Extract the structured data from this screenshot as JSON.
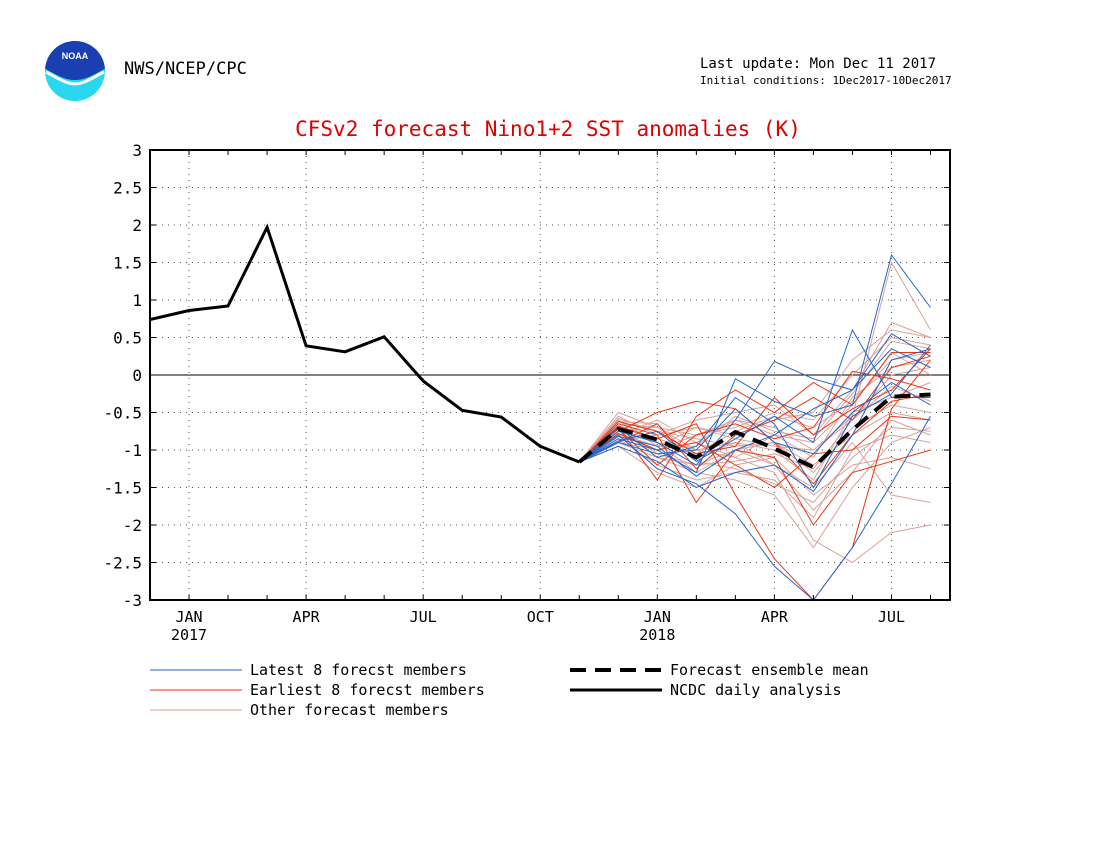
{
  "header": {
    "logo_text": "NOAA",
    "agency": "NWS/NCEP/CPC",
    "last_update": "Last update: Mon Dec 11 2017",
    "initial_conditions": "Initial conditions: 1Dec2017-10Dec2017"
  },
  "colors": {
    "title": "#dd0000",
    "latest": "#2266cc",
    "earliest": "#ee3311",
    "other": "#d9a29a",
    "logo_top": "#1a3fb0",
    "logo_bottom": "#29d8f0"
  },
  "chart_data": {
    "type": "line",
    "title": "CFSv2 forecast Nino1+2 SST anomalies (K)",
    "ylim": [
      -3,
      3
    ],
    "yticks": [
      3,
      2.5,
      2,
      1.5,
      1,
      0.5,
      0,
      -0.5,
      -1,
      -1.5,
      -2,
      -2.5,
      -3
    ],
    "ytick_labels": [
      "3",
      "2.5",
      "2",
      "1.5",
      "1",
      "0.5",
      "0",
      "-0.5",
      "-1",
      "-1.5",
      "-2",
      "-2.5",
      "-3"
    ],
    "x_months": [
      "2016-12",
      "2017-01",
      "2017-02",
      "2017-03",
      "2017-04",
      "2017-05",
      "2017-06",
      "2017-07",
      "2017-08",
      "2017-09",
      "2017-10",
      "2017-11",
      "2017-12",
      "2018-01",
      "2018-02",
      "2018-03",
      "2018-04",
      "2018-05",
      "2018-06",
      "2018-07",
      "2018-08"
    ],
    "xtick_labels": [
      {
        "month": "2017-01",
        "label": "JAN",
        "year": "2017"
      },
      {
        "month": "2017-04",
        "label": "APR",
        "year": ""
      },
      {
        "month": "2017-07",
        "label": "JUL",
        "year": ""
      },
      {
        "month": "2017-10",
        "label": "OCT",
        "year": ""
      },
      {
        "month": "2018-01",
        "label": "JAN",
        "year": "2018"
      },
      {
        "month": "2018-04",
        "label": "APR",
        "year": ""
      },
      {
        "month": "2018-07",
        "label": "JUL",
        "year": ""
      }
    ],
    "grid": true,
    "zero_line": true,
    "observed": {
      "name": "NCDC daily analysis",
      "x": [
        "2016-12",
        "2017-01",
        "2017-02",
        "2017-03",
        "2017-04",
        "2017-05",
        "2017-06",
        "2017-07",
        "2017-08",
        "2017-09",
        "2017-10",
        "2017-11"
      ],
      "values": [
        0.74,
        0.86,
        0.92,
        1.97,
        0.39,
        0.31,
        0.51,
        -0.08,
        -0.47,
        -0.56,
        -0.95,
        -1.16
      ]
    },
    "ensemble_mean": {
      "name": "Forecast ensemble mean",
      "x": [
        "2017-11",
        "2017-12",
        "2018-01",
        "2018-02",
        "2018-03",
        "2018-04",
        "2018-05",
        "2018-06",
        "2018-07",
        "2018-08"
      ],
      "values": [
        -1.16,
        -0.72,
        -0.86,
        -1.1,
        -0.76,
        -0.98,
        -1.23,
        -0.73,
        -0.29,
        -0.26
      ]
    },
    "member_x": [
      "2017-11",
      "2017-12",
      "2018-01",
      "2018-02",
      "2018-03",
      "2018-04",
      "2018-05",
      "2018-06",
      "2018-07",
      "2018-08"
    ],
    "latest_members": [
      [
        -1.16,
        -0.95,
        -1.15,
        -1.5,
        -1.3,
        -1.2,
        -1.55,
        -0.8,
        0.2,
        0.35
      ],
      [
        -1.16,
        -0.85,
        -1.0,
        -1.3,
        -0.05,
        -0.35,
        -0.55,
        -0.4,
        1.6,
        0.9
      ],
      [
        -1.16,
        -0.8,
        -1.25,
        -1.45,
        -1.85,
        -2.55,
        -3.05,
        -2.3,
        -1.45,
        -0.55
      ],
      [
        -1.16,
        -0.75,
        -0.9,
        -1.2,
        -0.6,
        0.18,
        -0.05,
        -0.2,
        0.55,
        0.25
      ],
      [
        -1.16,
        -0.9,
        -1.05,
        -1.0,
        -0.45,
        -0.9,
        -1.05,
        -0.5,
        -0.1,
        -0.4
      ],
      [
        -1.16,
        -0.7,
        -1.1,
        -0.95,
        -0.3,
        -0.65,
        -1.5,
        -0.55,
        -0.25,
        0.4
      ],
      [
        -1.16,
        -0.88,
        -0.75,
        -1.15,
        -0.85,
        -0.55,
        -0.9,
        0.6,
        -0.3,
        -0.3
      ],
      [
        -1.16,
        -0.82,
        -0.95,
        -1.35,
        -1.0,
        -0.8,
        -0.45,
        -0.2,
        0.35,
        0.1
      ]
    ],
    "earliest_members": [
      [
        -1.16,
        -0.7,
        -1.4,
        -0.55,
        -0.2,
        -0.5,
        -0.1,
        -0.4,
        0.3,
        0.3
      ],
      [
        -1.16,
        -0.65,
        -0.8,
        -1.7,
        -1.0,
        -1.1,
        -2.0,
        -1.3,
        -1.15,
        -1.0
      ],
      [
        -1.16,
        -0.75,
        -0.5,
        -0.35,
        -0.45,
        -0.9,
        -1.45,
        -0.8,
        -0.35,
        -0.25
      ],
      [
        -1.16,
        -0.9,
        -0.65,
        -1.25,
        -0.8,
        -0.6,
        -0.3,
        -0.6,
        0.1,
        0.25
      ],
      [
        -1.16,
        -0.78,
        -1.0,
        -0.9,
        -1.2,
        -1.5,
        -1.05,
        -1.0,
        -0.55,
        -0.6
      ],
      [
        -1.16,
        -0.68,
        -0.85,
        -0.65,
        -1.6,
        -2.45,
        -3.05,
        -2.3,
        -0.45,
        0.2
      ],
      [
        -1.16,
        -0.72,
        -1.2,
        -0.8,
        -0.65,
        -0.85,
        -0.7,
        0.05,
        -0.05,
        -0.2
      ],
      [
        -1.16,
        -0.62,
        -0.75,
        -1.05,
        -0.95,
        -0.3,
        -0.8,
        -0.45,
        -0.2,
        0.35
      ]
    ],
    "other_members": [
      [
        -1.16,
        -0.5,
        -0.7,
        -1.0,
        -0.9,
        -1.2,
        -1.8,
        -1.3,
        -0.6,
        -0.8
      ],
      [
        -1.16,
        -0.6,
        -0.9,
        -1.3,
        -1.4,
        -1.6,
        -2.3,
        -1.5,
        -0.9,
        -0.7
      ],
      [
        -1.16,
        -0.8,
        -0.6,
        -0.9,
        -1.1,
        -0.8,
        -1.1,
        -0.3,
        0.1,
        0.2
      ],
      [
        -1.16,
        -0.9,
        -1.0,
        -0.8,
        -0.7,
        -0.5,
        -0.6,
        0.0,
        0.5,
        0.4
      ],
      [
        -1.16,
        -0.7,
        -1.1,
        -1.2,
        -1.0,
        -0.9,
        -1.3,
        -0.7,
        -0.4,
        -0.5
      ],
      [
        -1.16,
        -0.55,
        -0.8,
        -0.6,
        -0.5,
        -0.4,
        -0.8,
        -0.2,
        0.7,
        0.5
      ],
      [
        -1.16,
        -0.85,
        -1.2,
        -1.4,
        -1.3,
        -1.4,
        -1.9,
        -1.0,
        -0.8,
        -0.9
      ],
      [
        -1.16,
        -0.75,
        -0.9,
        -1.1,
        -0.9,
        -1.0,
        -1.4,
        -0.5,
        -0.3,
        -0.1
      ],
      [
        -1.16,
        -0.65,
        -0.7,
        -0.8,
        -0.6,
        -0.7,
        -1.0,
        -0.6,
        0.0,
        0.1
      ],
      [
        -1.16,
        -0.95,
        -1.3,
        -1.5,
        -1.2,
        -1.1,
        -1.6,
        -1.2,
        -1.1,
        -1.25
      ],
      [
        -1.16,
        -0.6,
        -0.95,
        -0.7,
        -0.8,
        -0.6,
        -0.5,
        0.2,
        0.6,
        0.5
      ],
      [
        -1.16,
        -0.7,
        -0.85,
        -1.0,
        -1.1,
        -1.3,
        -2.2,
        -2.5,
        -2.1,
        -2.0
      ],
      [
        -1.16,
        -0.8,
        -1.0,
        -0.9,
        -0.6,
        -0.8,
        -0.9,
        -0.4,
        0.3,
        0.0
      ],
      [
        -1.16,
        -0.9,
        -1.1,
        -1.3,
        -1.0,
        -1.2,
        -1.5,
        -0.9,
        -1.6,
        -1.7
      ],
      [
        -1.16,
        -0.58,
        -0.75,
        -0.85,
        -0.95,
        -0.9,
        -1.2,
        -0.8,
        -0.5,
        -0.6
      ],
      [
        -1.16,
        -0.72,
        -0.9,
        -1.05,
        -0.75,
        -0.55,
        -0.7,
        -0.35,
        0.2,
        0.3
      ],
      [
        -1.16,
        -0.68,
        -1.05,
        -1.2,
        -1.15,
        -1.05,
        -1.25,
        -0.6,
        -0.15,
        -0.35
      ],
      [
        -1.16,
        -0.88,
        -0.8,
        -0.7,
        -0.85,
        -0.95,
        -1.0,
        -0.55,
        1.5,
        0.6
      ],
      [
        -1.16,
        -0.62,
        -0.65,
        -1.15,
        -1.25,
        -1.45,
        -1.7,
        -1.1,
        -0.7,
        -0.75
      ],
      [
        -1.16,
        -0.78,
        -0.95,
        -0.95,
        -0.55,
        -0.75,
        -0.85,
        -0.25,
        0.45,
        0.35
      ]
    ],
    "legend": [
      {
        "key": "latest",
        "label": "Latest 8 forecst members",
        "style": "thin",
        "color": "#2266cc"
      },
      {
        "key": "earliest",
        "label": "Earliest 8 forecst members",
        "style": "thin",
        "color": "#ee3311"
      },
      {
        "key": "other",
        "label": "Other forecast members",
        "style": "thin",
        "color": "#d9a29a"
      },
      {
        "key": "mean",
        "label": "Forecast ensemble mean",
        "style": "dashed-thick",
        "color": "#000000"
      },
      {
        "key": "observed",
        "label": "NCDC daily analysis",
        "style": "solid-thick",
        "color": "#000000"
      }
    ]
  }
}
